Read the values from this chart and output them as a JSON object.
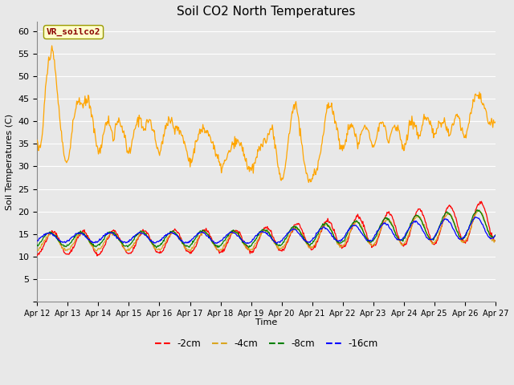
{
  "title": "Soil CO2 North Temperatures",
  "ylabel": "Soil Temperatures (C)",
  "xlabel": "Time",
  "annotation_label": "VR_soilco2",
  "annotation_color": "#8B0000",
  "annotation_bg": "#FFFFCC",
  "ylim": [
    0,
    62
  ],
  "yticks": [
    0,
    5,
    10,
    15,
    20,
    25,
    30,
    35,
    40,
    45,
    50,
    55,
    60
  ],
  "xtick_labels": [
    "Apr 12",
    "Apr 13",
    "Apr 14",
    "Apr 15",
    "Apr 16",
    "Apr 17",
    "Apr 18",
    "Apr 19",
    "Apr 20",
    "Apr 21",
    "Apr 22",
    "Apr 23",
    "Apr 24",
    "Apr 25",
    "Apr 26",
    "Apr 27"
  ],
  "bg_color": "#E8E8E8",
  "plot_bg": "#E8E8E8",
  "grid_color": "white",
  "vr_color": "#FFA500",
  "d2cm_color": "red",
  "d4cm_color": "#DAA520",
  "d8cm_color": "green",
  "d16cm_color": "blue",
  "legend_labels": [
    "-2cm",
    "-4cm",
    "-8cm",
    "-16cm"
  ],
  "annotation_edge": "#999900"
}
